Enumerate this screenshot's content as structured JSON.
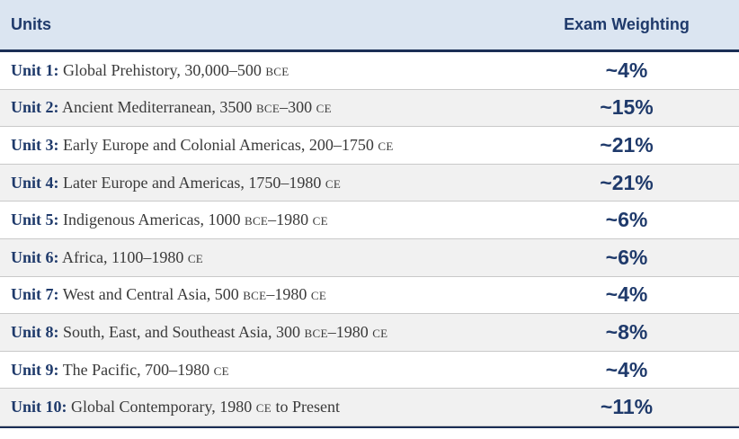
{
  "header": {
    "units_label": "Units",
    "weighting_label": "Exam Weighting"
  },
  "rows": [
    {
      "unit": "Unit 1:",
      "title": "Global Prehistory, 30,000–500 ",
      "sc1": "BCE",
      "mid": "",
      "sc2": "",
      "tail": "",
      "weight": "~4%"
    },
    {
      "unit": "Unit 2:",
      "title": "Ancient Mediterranean, 3500 ",
      "sc1": "BCE",
      "mid": "–300 ",
      "sc2": "CE",
      "tail": "",
      "weight": "~15%"
    },
    {
      "unit": "Unit 3:",
      "title": "Early Europe and Colonial Americas, 200–1750 ",
      "sc1": "CE",
      "mid": "",
      "sc2": "",
      "tail": "",
      "weight": "~21%"
    },
    {
      "unit": "Unit 4:",
      "title": "Later Europe and Americas, 1750–1980 ",
      "sc1": "CE",
      "mid": "",
      "sc2": "",
      "tail": "",
      "weight": "~21%"
    },
    {
      "unit": "Unit 5:",
      "title": "Indigenous Americas, 1000 ",
      "sc1": "BCE",
      "mid": "–1980 ",
      "sc2": "CE",
      "tail": "",
      "weight": "~6%"
    },
    {
      "unit": "Unit 6:",
      "title": "Africa, 1100–1980 ",
      "sc1": "CE",
      "mid": "",
      "sc2": "",
      "tail": "",
      "weight": "~6%"
    },
    {
      "unit": "Unit 7:",
      "title": "West and Central Asia, 500 ",
      "sc1": "BCE",
      "mid": "–1980 ",
      "sc2": "CE",
      "tail": "",
      "weight": "~4%"
    },
    {
      "unit": "Unit 8:",
      "title": "South, East, and Southeast Asia, 300 ",
      "sc1": "BCE",
      "mid": "–1980 ",
      "sc2": "CE",
      "tail": "",
      "weight": "~8%"
    },
    {
      "unit": "Unit 9:",
      "title": "The Pacific, 700–1980 ",
      "sc1": "CE",
      "mid": "",
      "sc2": "",
      "tail": "",
      "weight": "~4%"
    },
    {
      "unit": "Unit 10:",
      "title": "Global Contemporary, 1980 ",
      "sc1": "CE",
      "mid": "",
      "sc2": "",
      "tail": " to Present",
      "weight": "~11%"
    }
  ]
}
